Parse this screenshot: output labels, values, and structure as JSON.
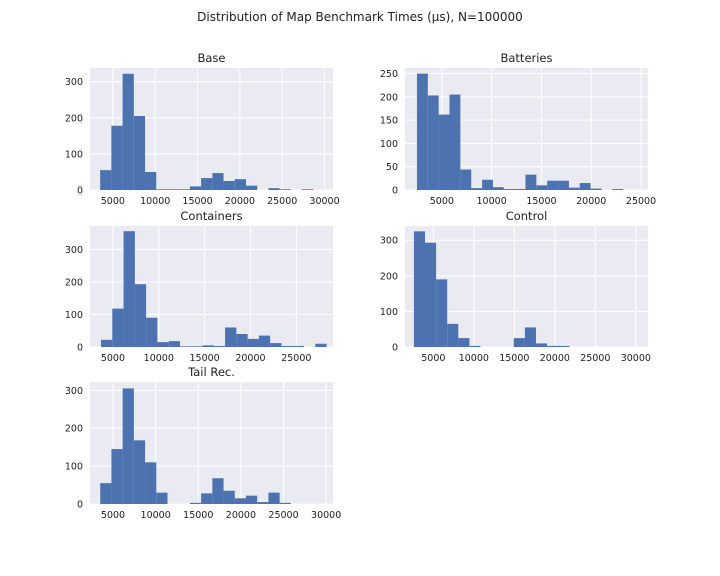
{
  "title": "Distribution of Map Benchmark Times (μs), N=100000",
  "style": {
    "panel_bg": "#eaeaf2",
    "grid": "#ffffff",
    "bar": "#4c72b0"
  },
  "chart_data": [
    {
      "type": "bar",
      "title": "Base",
      "bin_start": 3500,
      "bin_width": 1325,
      "values": [
        55,
        178,
        322,
        205,
        50,
        2,
        2,
        2,
        10,
        33,
        47,
        25,
        30,
        12,
        0,
        5,
        2,
        0,
        2,
        0
      ],
      "xlim": [
        2300,
        31000
      ],
      "ylim": [
        0,
        338
      ],
      "xticks": [
        5000,
        10000,
        15000,
        20000,
        25000,
        30000
      ],
      "yticks": [
        0,
        100,
        200,
        300
      ],
      "grid": true
    },
    {
      "type": "bar",
      "title": "Batteries",
      "bin_start": 2500,
      "bin_width": 1090,
      "values": [
        250,
        203,
        162,
        205,
        44,
        4,
        22,
        6,
        2,
        2,
        33,
        10,
        20,
        20,
        5,
        15,
        3,
        0,
        2,
        0
      ],
      "xlim": [
        1300,
        25700
      ],
      "ylim": [
        0,
        262
      ],
      "xticks": [
        5000,
        10000,
        15000,
        20000,
        25000
      ],
      "yticks": [
        0,
        50,
        100,
        150,
        200,
        250
      ],
      "grid": true
    },
    {
      "type": "bar",
      "title": "Containers",
      "bin_start": 3700,
      "bin_width": 1230,
      "values": [
        22,
        118,
        356,
        193,
        90,
        15,
        18,
        2,
        2,
        5,
        3,
        60,
        40,
        25,
        35,
        12,
        3,
        3,
        0,
        10
      ],
      "xlim": [
        2500,
        29000
      ],
      "ylim": [
        0,
        372
      ],
      "xticks": [
        5000,
        10000,
        15000,
        20000,
        25000
      ],
      "yticks": [
        0,
        100,
        200,
        300
      ],
      "grid": true
    },
    {
      "type": "bar",
      "title": "Control",
      "bin_start": 2600,
      "bin_width": 1370,
      "values": [
        325,
        293,
        190,
        65,
        25,
        3,
        0,
        0,
        0,
        25,
        55,
        10,
        3,
        3,
        0,
        0,
        0,
        0,
        0,
        0
      ],
      "xlim": [
        1500,
        31500
      ],
      "ylim": [
        0,
        340
      ],
      "xticks": [
        5000,
        10000,
        15000,
        20000,
        25000,
        30000
      ],
      "yticks": [
        0,
        100,
        200,
        300
      ],
      "grid": true
    },
    {
      "type": "bar",
      "title": "Tail Rec.",
      "bin_start": 3500,
      "bin_width": 1315,
      "values": [
        55,
        145,
        305,
        168,
        110,
        30,
        0,
        0,
        3,
        28,
        68,
        35,
        15,
        22,
        5,
        30,
        3,
        0,
        0,
        0
      ],
      "xlim": [
        2300,
        30800
      ],
      "ylim": [
        0,
        322
      ],
      "xticks": [
        5000,
        10000,
        15000,
        20000,
        25000,
        30000
      ],
      "yticks": [
        0,
        100,
        200,
        300
      ],
      "grid": true
    }
  ]
}
